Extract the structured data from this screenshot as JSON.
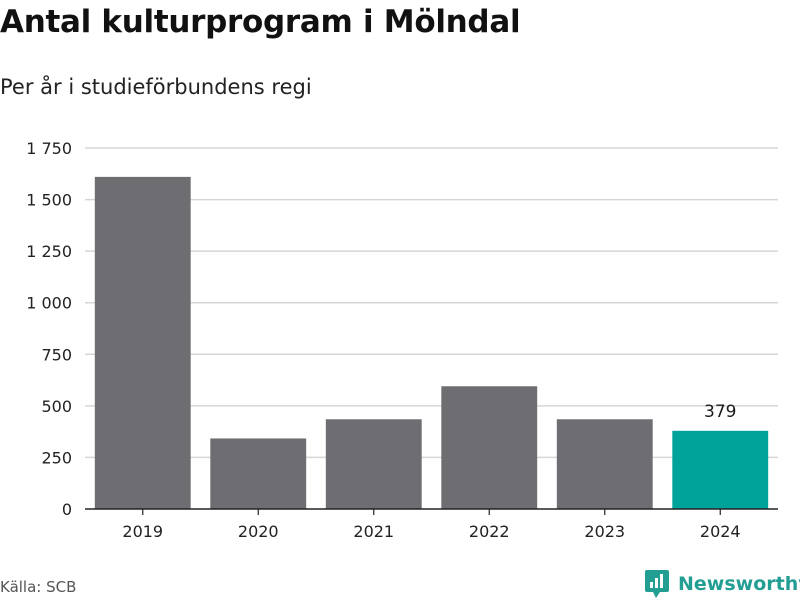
{
  "title": "Antal kulturprogram i Mölndal",
  "subtitle": "Per år i studieförbundens regi",
  "source": "Källa: SCB",
  "brand": "Newsworthy",
  "colors": {
    "bar": "#6e6d72",
    "highlight": "#00a399",
    "grid": "#d6d6d6",
    "axis": "#222222",
    "brand": "#229e93"
  },
  "chart_data": {
    "type": "bar",
    "categories": [
      "2019",
      "2020",
      "2021",
      "2022",
      "2023",
      "2024"
    ],
    "values": [
      1610,
      342,
      435,
      595,
      435,
      379
    ],
    "highlight_index": 5,
    "data_labels": [
      {
        "index": 5,
        "text": "379"
      }
    ],
    "ylim": [
      0,
      1750
    ],
    "yticks": [
      0,
      250,
      500,
      750,
      1000,
      1250,
      1500,
      1750
    ],
    "ytick_labels": [
      "0",
      "250",
      "500",
      "750",
      "1 000",
      "1 250",
      "1 500",
      "1 750"
    ],
    "grid": true,
    "legend": "none"
  }
}
